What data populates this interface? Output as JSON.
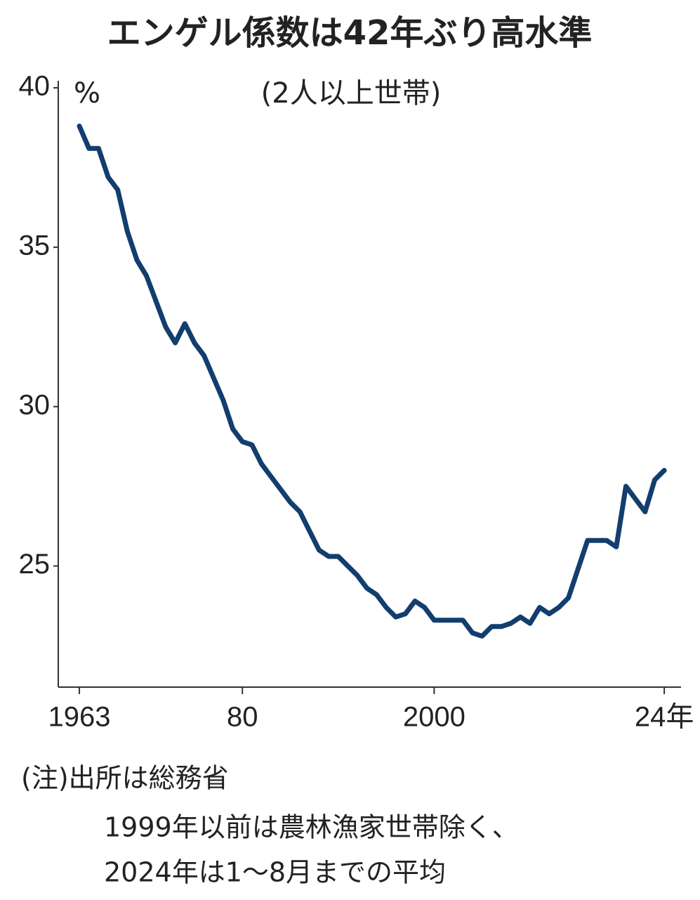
{
  "chart_data": {
    "type": "line",
    "title": "エンゲル係数は42年ぶり高水準",
    "subtitle": "(2人以上世帯)",
    "y_label": "%",
    "notes": [
      "(注)出所は総務省",
      "1999年以前は農林漁家世帯除く、",
      "2024年は1～8月までの平均"
    ],
    "x": [
      1963,
      1964,
      1965,
      1966,
      1967,
      1968,
      1969,
      1970,
      1971,
      1972,
      1973,
      1974,
      1975,
      1976,
      1977,
      1978,
      1979,
      1980,
      1981,
      1982,
      1983,
      1984,
      1985,
      1986,
      1987,
      1988,
      1989,
      1990,
      1991,
      1992,
      1993,
      1994,
      1995,
      1996,
      1997,
      1998,
      1999,
      2000,
      2001,
      2002,
      2003,
      2004,
      2005,
      2006,
      2007,
      2008,
      2009,
      2010,
      2011,
      2012,
      2013,
      2014,
      2015,
      2016,
      2017,
      2018,
      2019,
      2020,
      2021,
      2022,
      2023,
      2024
    ],
    "series": [
      {
        "color": "#123e6e",
        "values": [
          38.8,
          38.1,
          38.1,
          37.2,
          36.8,
          35.5,
          34.6,
          34.1,
          33.3,
          32.5,
          32.0,
          32.6,
          32.0,
          31.6,
          30.9,
          30.2,
          29.3,
          28.9,
          28.8,
          28.2,
          27.8,
          27.4,
          27.0,
          26.7,
          26.1,
          25.5,
          25.3,
          25.3,
          25.0,
          24.7,
          24.3,
          24.1,
          23.7,
          23.4,
          23.5,
          23.9,
          23.7,
          23.3,
          23.3,
          23.3,
          23.3,
          22.9,
          22.8,
          23.1,
          23.1,
          23.2,
          23.4,
          23.2,
          23.7,
          23.5,
          23.7,
          24.0,
          24.9,
          25.8,
          25.8,
          25.8,
          25.6,
          27.5,
          27.1,
          26.7,
          27.7,
          28.0
        ]
      }
    ],
    "xlim": [
      1960.8,
      2025.75
    ],
    "xticks": [
      1963,
      {
        "value": 1980,
        "label": "80"
      },
      2000,
      {
        "value": 2024,
        "label": "24年"
      }
    ],
    "ylim": [
      21.2,
      40
    ],
    "yticks": [
      25,
      30,
      35,
      40
    ]
  }
}
